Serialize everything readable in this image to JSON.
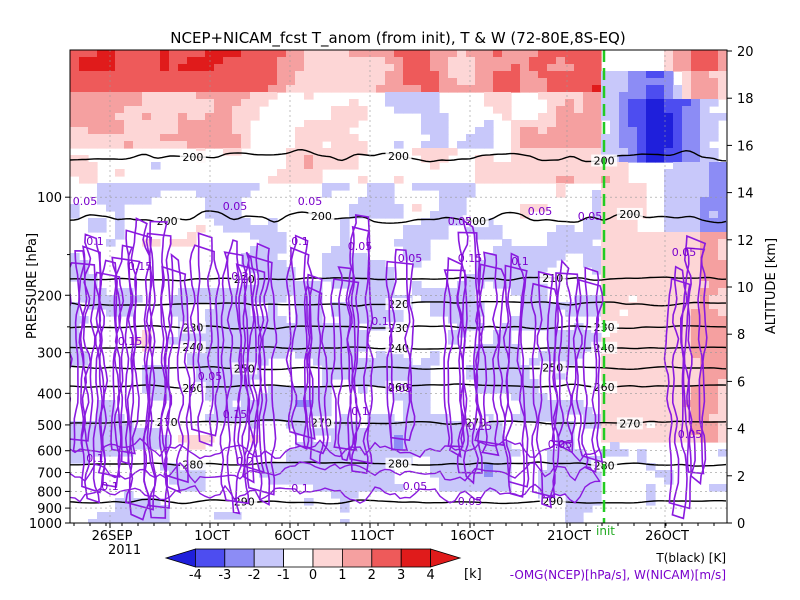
{
  "chart_data": {
    "type": "heatmap",
    "title": "NCEP+NICAM_fcst T_anom (from init), T & W  (72-80E,8S-EQ)",
    "xlabel": "",
    "ylabel_left": "PRESSURE [hPa]",
    "ylabel_right": "ALTITUDE [km]",
    "x_tick_labels": [
      "26SEP",
      "1OCT",
      "6OCT",
      "11OCT",
      "16OCT",
      "21OCT",
      "26OCT"
    ],
    "x_year_label": "2011",
    "y_left_ticks": [
      100,
      200,
      300,
      400,
      500,
      600,
      700,
      800,
      900,
      1000
    ],
    "y_right_ticks": [
      0,
      2,
      4,
      6,
      8,
      10,
      12,
      14,
      16,
      18,
      20
    ],
    "init_label": "init",
    "colorbar": {
      "ticks": [
        -4,
        -3,
        -2,
        -1,
        0,
        1,
        2,
        3,
        4
      ],
      "unit": "[k]",
      "colors": [
        "#1f1fdb",
        "#4d4df0",
        "#8c8cf5",
        "#c8c8fa",
        "#ffffff",
        "#fdd6d6",
        "#f5a0a0",
        "#ee5a5a",
        "#e01b1b"
      ]
    },
    "legend": {
      "black": "T(black) [K]",
      "purple": "-OMG(NCEP)[hPa/s], W(NICAM)[m/s]"
    },
    "colors": {
      "temperature_contour": "#000000",
      "omega_contour": "#7a00cc",
      "init_line": "#22cc22"
    },
    "temperature_contours": [
      {
        "level": "200",
        "p": 75,
        "labels": [
          "200",
          "200",
          "200"
        ]
      },
      {
        "level": "200",
        "p": 115,
        "labels": [
          "200",
          "200",
          "200",
          "200"
        ]
      },
      {
        "level": "210",
        "p": 178,
        "labels": [
          "210",
          "210"
        ]
      },
      {
        "level": "220",
        "p": 212,
        "labels": [
          "220"
        ]
      },
      {
        "level": "230",
        "p": 250,
        "labels": [
          "230",
          "230",
          "230"
        ]
      },
      {
        "level": "240",
        "p": 290,
        "labels": [
          "240",
          "240",
          "240"
        ]
      },
      {
        "level": "250",
        "p": 335,
        "labels": [
          "250",
          "250"
        ]
      },
      {
        "level": "260",
        "p": 380,
        "labels": [
          "260",
          "260",
          "260"
        ]
      },
      {
        "level": "270",
        "p": 490,
        "labels": [
          "270",
          "270",
          "270",
          "270"
        ]
      },
      {
        "level": "280",
        "p": 660,
        "labels": [
          "280",
          "280",
          "280"
        ]
      },
      {
        "level": "290",
        "p": 860,
        "labels": [
          "290",
          "290"
        ]
      }
    ],
    "omega_contour_labels": [
      "0.05",
      "0.1",
      "0.15",
      "0.2"
    ]
  }
}
